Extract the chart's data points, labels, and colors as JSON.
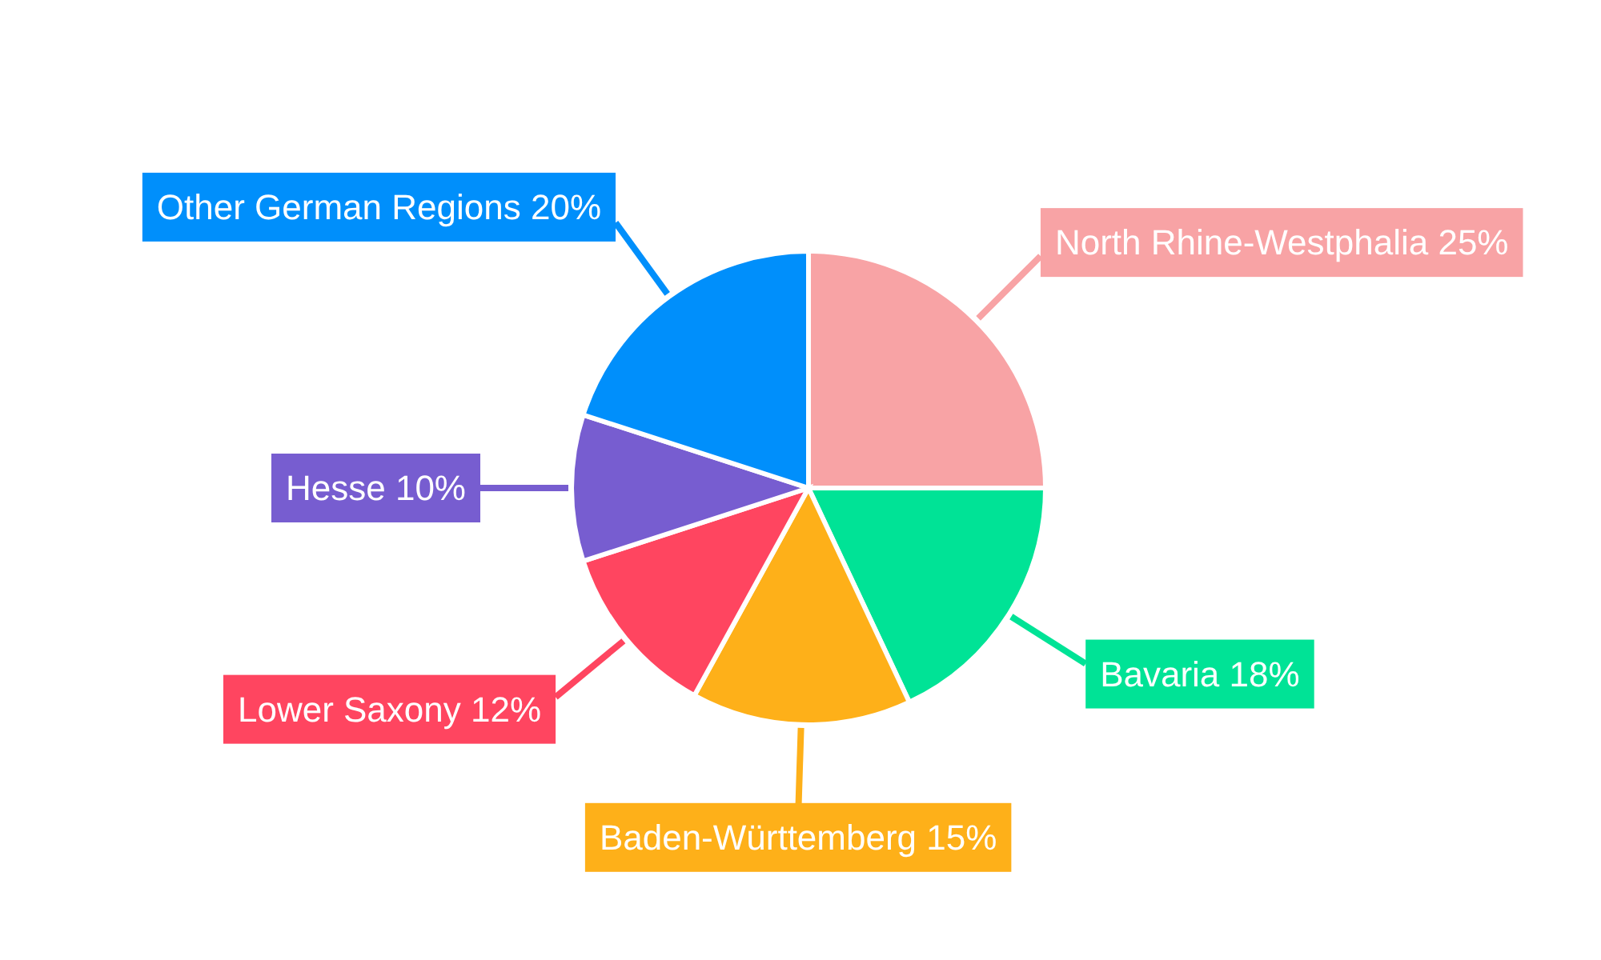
{
  "chart_data": {
    "type": "pie",
    "categories": [
      "North Rhine-Westphalia",
      "Bavaria",
      "Baden-Württemberg",
      "Lower Saxony",
      "Hesse",
      "Other German Regions"
    ],
    "values": [
      25,
      18,
      15,
      12,
      10,
      20
    ],
    "colors": [
      "#f8a3a5",
      "#00e396",
      "#feb019",
      "#ff4560",
      "#775dd0",
      "#008ffb"
    ],
    "value_labels": [
      "25%",
      "18%",
      "15%",
      "12%",
      "10%",
      "20%"
    ]
  }
}
